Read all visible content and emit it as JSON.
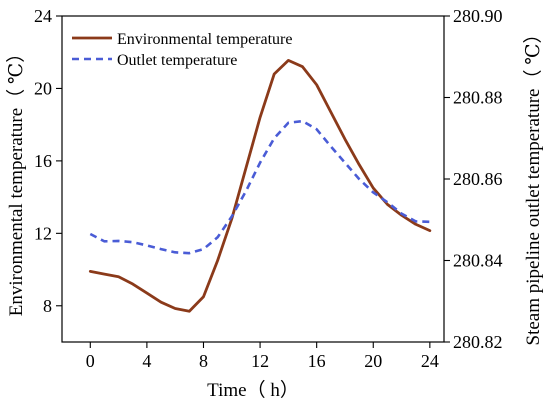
{
  "chart_data": {
    "type": "line",
    "xlabel": "Time（ h）",
    "ylabel_left": "Environmental temperature（ ℃）",
    "ylabel_right": "Steam pipeline outlet temperature（ ℃）",
    "xlim": [
      -2,
      25
    ],
    "ylim_left": [
      6,
      24
    ],
    "ylim_right": [
      280.82,
      280.9
    ],
    "x_ticks": [
      "0",
      "4",
      "8",
      "12",
      "16",
      "20",
      "24"
    ],
    "y_left_ticks": [
      "8",
      "12",
      "16",
      "20",
      "24"
    ],
    "y_right_ticks": [
      "280.82",
      "280.84",
      "280.86",
      "280.88",
      "280.90"
    ],
    "legend_position": "top-left",
    "series": [
      {
        "name": "Environmental temperature",
        "axis": "left",
        "style": "solid",
        "color": "#8B3A1A",
        "x": [
          0,
          1,
          2,
          3,
          4,
          5,
          6,
          7,
          8,
          9,
          10,
          11,
          12,
          13,
          14,
          15,
          16,
          17,
          18,
          19,
          20,
          21,
          22,
          23,
          24
        ],
        "y": [
          9.9,
          9.75,
          9.6,
          9.2,
          8.7,
          8.2,
          7.85,
          7.7,
          8.5,
          10.5,
          12.8,
          15.6,
          18.4,
          20.8,
          21.55,
          21.2,
          20.2,
          18.7,
          17.2,
          15.8,
          14.5,
          13.6,
          13.0,
          12.5,
          12.15
        ]
      },
      {
        "name": "Outlet temperature",
        "axis": "right",
        "style": "dashed",
        "color": "#4A5CD6",
        "x": [
          0,
          1,
          2,
          3,
          4,
          5,
          6,
          7,
          8,
          9,
          10,
          11,
          12,
          13,
          14,
          15,
          16,
          17,
          18,
          19,
          20,
          21,
          22,
          23,
          24
        ],
        "y": [
          280.8465,
          280.8447,
          280.8448,
          280.8445,
          280.8437,
          280.8428,
          280.842,
          280.8418,
          280.8428,
          280.8457,
          280.8508,
          280.857,
          280.864,
          280.87,
          280.8738,
          280.8742,
          280.8722,
          280.868,
          280.864,
          280.86,
          280.8567,
          280.8543,
          280.8515,
          280.8496,
          280.8495
        ]
      }
    ]
  }
}
